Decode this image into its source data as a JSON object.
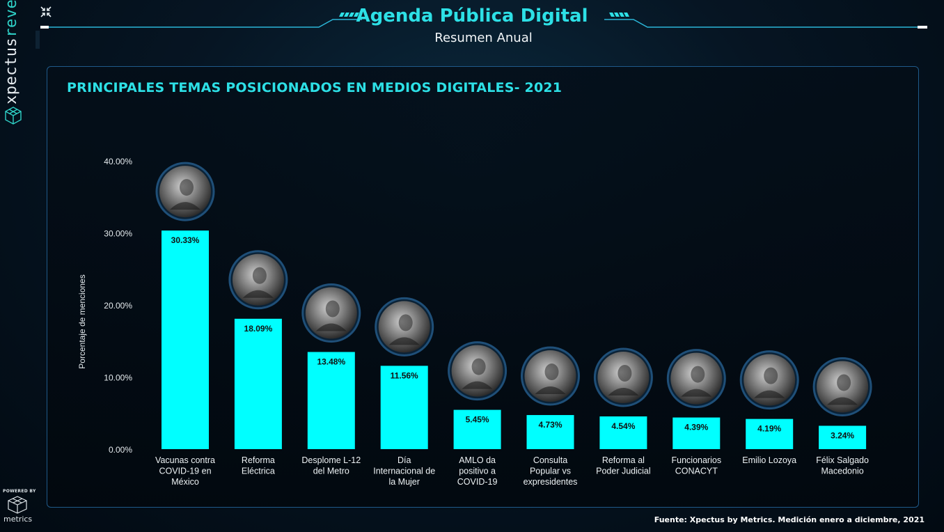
{
  "header": {
    "title": "Agenda Pública Digital",
    "subtitle": "Resumen Anual"
  },
  "brand": {
    "name_part1": "xpectus",
    "name_part2": "revelio",
    "powered_by": "POWERED BY",
    "metrics_label": "metrics"
  },
  "footer": {
    "source": "Fuente: Xpectus by Metrics. Medición enero a diciembre, 2021"
  },
  "colors": {
    "accent": "#2de0e6",
    "bar": "#00ffff",
    "panel_border": "#1f5a8a"
  },
  "chart_data": {
    "type": "bar",
    "title": "PRINCIPALES TEMAS POSICIONADOS EN MEDIOS DIGITALES- 2021",
    "ylabel": "Porcentaje de menciones",
    "xlabel": "",
    "ylim": [
      0,
      40
    ],
    "yticks": [
      "0.00%",
      "10.00%",
      "20.00%",
      "30.00%",
      "40.00%"
    ],
    "grid": false,
    "categories": [
      [
        "Vacunas contra",
        "COVID-19 en",
        "México"
      ],
      [
        "Reforma",
        "Eléctrica"
      ],
      [
        "Desplome L-12",
        "del Metro"
      ],
      [
        "Día",
        "Internacional de",
        "la Mujer"
      ],
      [
        "AMLO da",
        "positivo a",
        "COVID-19"
      ],
      [
        "Consulta",
        "Popular vs",
        "expresidentes"
      ],
      [
        "Reforma al",
        "Poder Judicial"
      ],
      [
        "Funcionarios",
        "CONACYT"
      ],
      [
        "Emilio Lozoya"
      ],
      [
        "Félix Salgado",
        "Macedonio"
      ]
    ],
    "values": [
      30.33,
      18.09,
      13.48,
      11.56,
      5.45,
      4.73,
      4.54,
      4.39,
      4.19,
      3.24
    ],
    "value_labels": [
      "30.33%",
      "18.09%",
      "13.48%",
      "11.56%",
      "5.45%",
      "4.73%",
      "4.54%",
      "4.39%",
      "4.19%",
      "3.24%"
    ],
    "bar_photo_icons": [
      "covid-vaccine-photo-icon",
      "electric-tower-photo-icon",
      "metro-collapse-photo-icon",
      "feminist-march-photo-icon",
      "amlo-photo-icon",
      "consulta-popular-photo-icon",
      "judge-photo-icon",
      "conacyt-building-photo-icon",
      "lozoya-photo-icon",
      "salgado-photo-icon"
    ]
  }
}
